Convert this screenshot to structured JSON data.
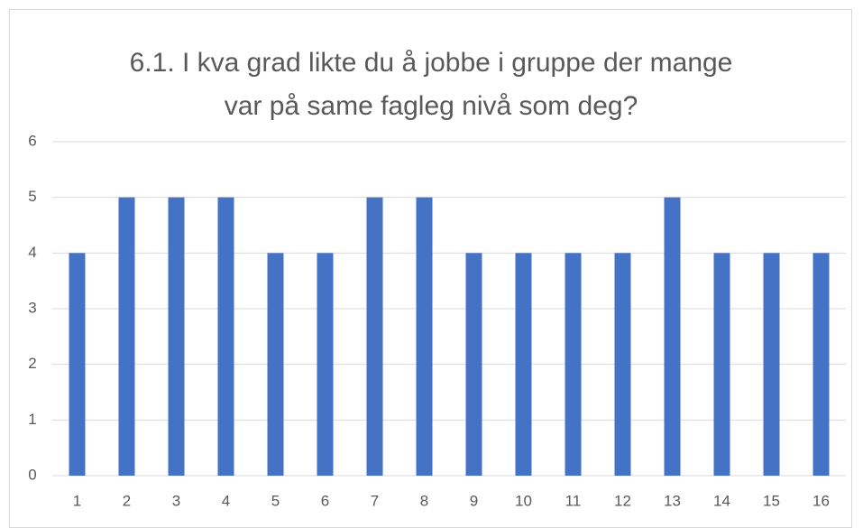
{
  "chart_data": {
    "type": "bar",
    "title": "6.1. I kva grad likte du å jobbe i gruppe der mange var på same fagleg nivå som deg?",
    "categories": [
      "1",
      "2",
      "3",
      "4",
      "5",
      "6",
      "7",
      "8",
      "9",
      "10",
      "11",
      "12",
      "13",
      "14",
      "15",
      "16"
    ],
    "values": [
      4,
      5,
      5,
      5,
      4,
      4,
      5,
      5,
      4,
      4,
      4,
      4,
      5,
      4,
      4,
      4
    ],
    "color": "#4472c4",
    "ylim": [
      0,
      6
    ],
    "yticks": [
      0,
      1,
      2,
      3,
      4,
      5,
      6
    ],
    "grid": true
  }
}
